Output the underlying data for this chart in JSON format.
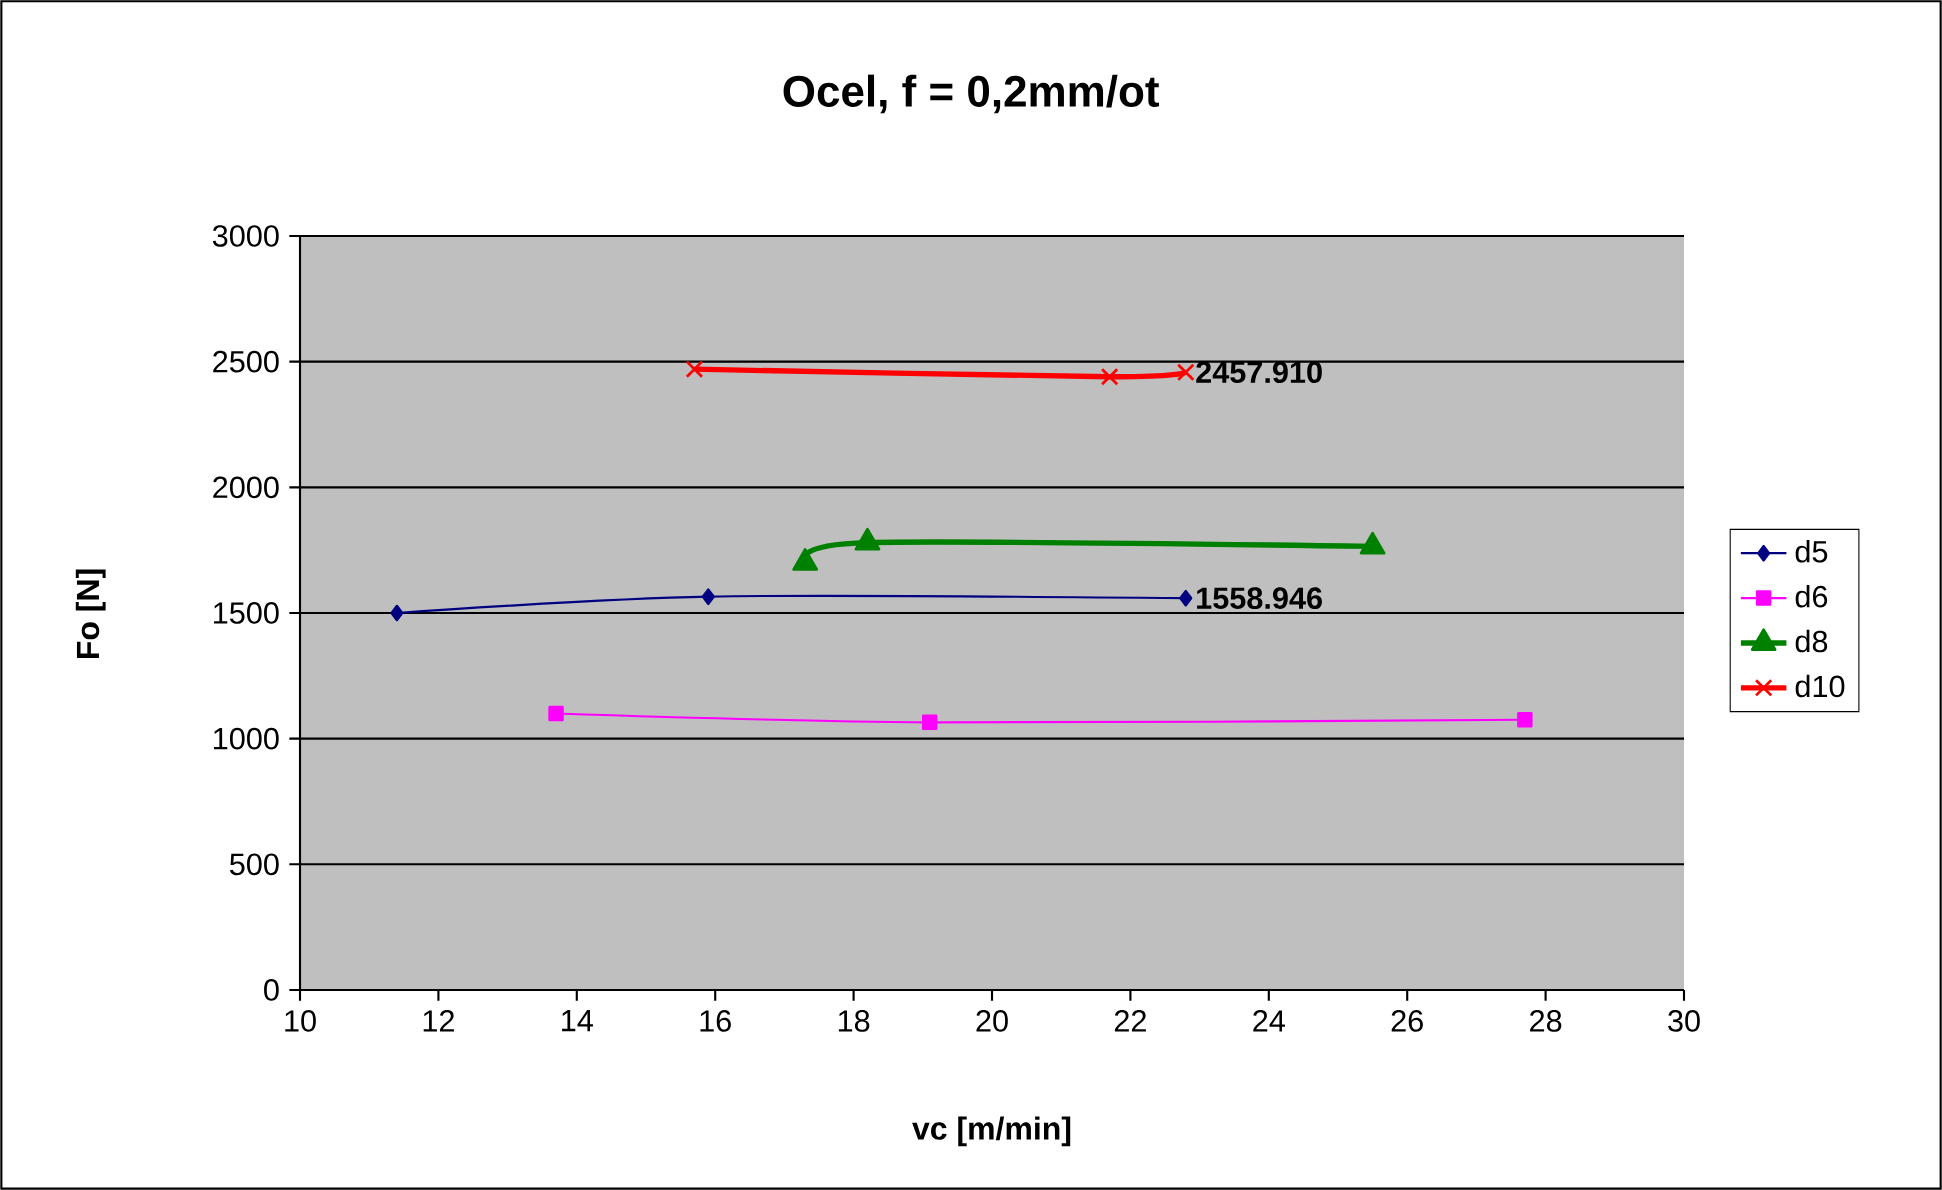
{
  "chart_data": {
    "type": "line",
    "title": "Ocel, f = 0,2mm/ot",
    "xlabel": "vc [m/min]",
    "ylabel": "Fo [N]",
    "xlim": [
      10,
      30
    ],
    "xticks": [
      10,
      12,
      14,
      16,
      18,
      20,
      22,
      24,
      26,
      28,
      30
    ],
    "ylim": [
      0,
      3000
    ],
    "yticks": [
      0,
      500,
      1000,
      1500,
      2000,
      2500,
      3000
    ],
    "grid": "y",
    "legend": "right",
    "series": [
      {
        "name": "d5",
        "color": "#000080",
        "marker": "diamond",
        "x": [
          11.4,
          15.9,
          22.8
        ],
        "values": [
          1500,
          1565,
          1558.946
        ],
        "value_labels": [
          null,
          null,
          "1558.946"
        ]
      },
      {
        "name": "d6",
        "color": "#ff00ff",
        "marker": "square",
        "x": [
          13.7,
          19.1,
          27.7
        ],
        "values": [
          1100,
          1065,
          1075
        ],
        "value_labels": [
          null,
          null,
          null
        ]
      },
      {
        "name": "d8",
        "color": "#008000",
        "marker": "triangle",
        "x": [
          17.3,
          18.2,
          25.5
        ],
        "values": [
          1700,
          1780,
          1765
        ],
        "value_labels": [
          null,
          null,
          null
        ]
      },
      {
        "name": "d10",
        "color": "#ff0000",
        "marker": "cross",
        "x": [
          15.7,
          21.7,
          22.8
        ],
        "values": [
          2470,
          2440,
          2457.91
        ],
        "value_labels": [
          null,
          null,
          "2457.910"
        ]
      }
    ]
  }
}
